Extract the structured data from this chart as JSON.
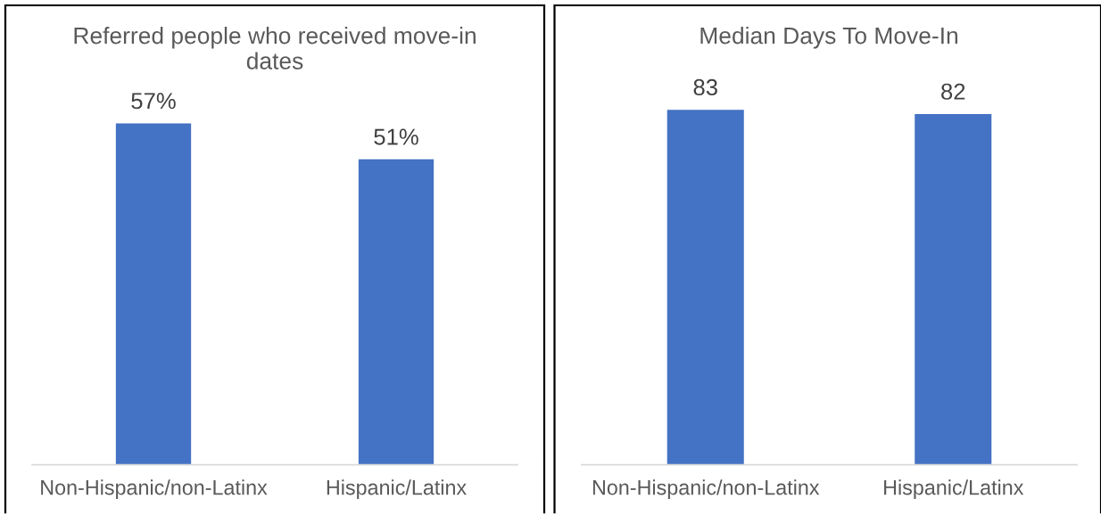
{
  "chart_data": [
    {
      "type": "bar",
      "title": "Referred people who received move-in dates",
      "categories": [
        "Non-Hispanic/non-Latinx",
        "Hispanic/Latinx"
      ],
      "values": [
        57,
        51
      ],
      "value_labels": [
        "57%",
        "51%"
      ],
      "color": "#4472c4",
      "tick_labels": "x"
    },
    {
      "type": "bar",
      "title": "Median Days To Move-In",
      "categories": [
        "Non-Hispanic/non-Latinx",
        "Hispanic/Latinx"
      ],
      "values": [
        83,
        82
      ],
      "data_labels": true,
      "color": "#4472c4",
      "tick_labels": "x"
    }
  ]
}
